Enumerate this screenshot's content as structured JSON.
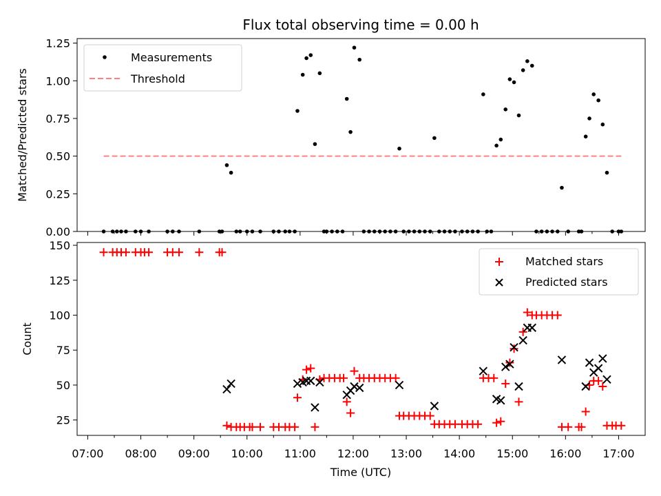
{
  "chart_data": [
    {
      "type": "scatter",
      "title": "Flux total observing time = 0.00 h",
      "xlabel": "",
      "ylabel": "Matched/Predicted stars",
      "xlim": [
        6.8,
        17.5
      ],
      "ylim": [
        0,
        1.28
      ],
      "yticks": [
        0,
        0.25,
        0.5,
        0.75,
        1.0,
        1.25
      ],
      "ytick_labels": [
        "0.00",
        "0.25",
        "0.50",
        "0.75",
        "1.00",
        "1.25"
      ],
      "legend": {
        "position": "top-left",
        "entries": [
          "Measurements",
          "Threshold"
        ]
      },
      "threshold": {
        "name": "Threshold",
        "y": 0.5,
        "x_range": [
          7.3,
          17.05
        ],
        "color": "#ff8080",
        "style": "dashed"
      },
      "series": [
        {
          "name": "Measurements",
          "color": "#000000",
          "marker": "dot",
          "points": [
            [
              7.3,
              0
            ],
            [
              7.47,
              0
            ],
            [
              7.55,
              0
            ],
            [
              7.63,
              0
            ],
            [
              7.72,
              0
            ],
            [
              7.9,
              0
            ],
            [
              8.0,
              0
            ],
            [
              8.15,
              0
            ],
            [
              8.5,
              0
            ],
            [
              8.6,
              0
            ],
            [
              8.72,
              0
            ],
            [
              9.1,
              0
            ],
            [
              9.48,
              0
            ],
            [
              9.53,
              0
            ],
            [
              9.62,
              0.44
            ],
            [
              9.7,
              0.39
            ],
            [
              9.8,
              0
            ],
            [
              9.87,
              0
            ],
            [
              10.0,
              0
            ],
            [
              10.1,
              0
            ],
            [
              10.25,
              0
            ],
            [
              10.5,
              0
            ],
            [
              10.6,
              0
            ],
            [
              10.72,
              0
            ],
            [
              10.8,
              0
            ],
            [
              10.9,
              0
            ],
            [
              10.95,
              0.8
            ],
            [
              11.05,
              1.04
            ],
            [
              11.12,
              1.15
            ],
            [
              11.2,
              1.17
            ],
            [
              11.28,
              0.58
            ],
            [
              11.37,
              1.05
            ],
            [
              11.45,
              0
            ],
            [
              11.5,
              0
            ],
            [
              11.6,
              0
            ],
            [
              11.7,
              0
            ],
            [
              11.8,
              0
            ],
            [
              11.88,
              0.88
            ],
            [
              11.95,
              0.66
            ],
            [
              12.02,
              1.22
            ],
            [
              12.12,
              1.14
            ],
            [
              12.2,
              0
            ],
            [
              12.3,
              0
            ],
            [
              12.4,
              0
            ],
            [
              12.5,
              0
            ],
            [
              12.6,
              0
            ],
            [
              12.7,
              0
            ],
            [
              12.8,
              0
            ],
            [
              12.87,
              0.55
            ],
            [
              12.95,
              0
            ],
            [
              13.05,
              0
            ],
            [
              13.15,
              0
            ],
            [
              13.25,
              0
            ],
            [
              13.35,
              0
            ],
            [
              13.45,
              0
            ],
            [
              13.53,
              0.62
            ],
            [
              13.62,
              0
            ],
            [
              13.72,
              0
            ],
            [
              13.82,
              0
            ],
            [
              13.92,
              0
            ],
            [
              14.05,
              0
            ],
            [
              14.15,
              0
            ],
            [
              14.25,
              0
            ],
            [
              14.35,
              0
            ],
            [
              14.45,
              0.91
            ],
            [
              14.52,
              0
            ],
            [
              14.6,
              0
            ],
            [
              14.7,
              0.57
            ],
            [
              14.78,
              0.61
            ],
            [
              14.87,
              0.81
            ],
            [
              14.95,
              1.01
            ],
            [
              15.03,
              0.99
            ],
            [
              15.12,
              0.77
            ],
            [
              15.2,
              1.07
            ],
            [
              15.28,
              1.13
            ],
            [
              15.37,
              1.1
            ],
            [
              15.45,
              0
            ],
            [
              15.55,
              0
            ],
            [
              15.65,
              0
            ],
            [
              15.75,
              0
            ],
            [
              15.85,
              0
            ],
            [
              15.93,
              0.29
            ],
            [
              16.05,
              0
            ],
            [
              16.25,
              0
            ],
            [
              16.3,
              0
            ],
            [
              16.38,
              0.63
            ],
            [
              16.45,
              0.75
            ],
            [
              16.53,
              0.91
            ],
            [
              16.62,
              0.87
            ],
            [
              16.7,
              0.71
            ],
            [
              16.78,
              0.39
            ],
            [
              16.88,
              0
            ],
            [
              17.0,
              0
            ],
            [
              17.05,
              0
            ]
          ]
        }
      ]
    },
    {
      "type": "scatter",
      "xlabel": "Time (UTC)",
      "ylabel": "Count",
      "xlim": [
        6.8,
        17.5
      ],
      "ylim": [
        14,
        152
      ],
      "xticks": [
        7,
        8,
        9,
        10,
        11,
        12,
        13,
        14,
        15,
        16,
        17
      ],
      "xtick_labels": [
        "07:00",
        "08:00",
        "09:00",
        "10:00",
        "11:00",
        "12:00",
        "13:00",
        "14:00",
        "15:00",
        "16:00",
        "17:00"
      ],
      "yticks": [
        25,
        50,
        75,
        100,
        125,
        150
      ],
      "ytick_labels": [
        "25",
        "50",
        "75",
        "100",
        "125",
        "150"
      ],
      "legend": {
        "position": "top-right",
        "entries": [
          "Matched stars",
          "Predicted stars"
        ]
      },
      "series": [
        {
          "name": "Matched stars",
          "color": "#ff0000",
          "marker": "plus",
          "points": [
            [
              7.3,
              145
            ],
            [
              7.47,
              145
            ],
            [
              7.55,
              145
            ],
            [
              7.63,
              145
            ],
            [
              7.72,
              145
            ],
            [
              7.9,
              145
            ],
            [
              8.0,
              145
            ],
            [
              8.07,
              145
            ],
            [
              8.15,
              145
            ],
            [
              8.5,
              145
            ],
            [
              8.6,
              145
            ],
            [
              8.72,
              145
            ],
            [
              9.1,
              145
            ],
            [
              9.48,
              145
            ],
            [
              9.53,
              145
            ],
            [
              9.62,
              21
            ],
            [
              9.7,
              20
            ],
            [
              9.8,
              20
            ],
            [
              9.87,
              20
            ],
            [
              9.95,
              20
            ],
            [
              10.05,
              20
            ],
            [
              10.1,
              20
            ],
            [
              10.25,
              20
            ],
            [
              10.5,
              20
            ],
            [
              10.6,
              20
            ],
            [
              10.72,
              20
            ],
            [
              10.8,
              20
            ],
            [
              10.9,
              20
            ],
            [
              10.95,
              41
            ],
            [
              11.05,
              54
            ],
            [
              11.12,
              61
            ],
            [
              11.2,
              62
            ],
            [
              11.28,
              20
            ],
            [
              11.37,
              54
            ],
            [
              11.45,
              55
            ],
            [
              11.55,
              55
            ],
            [
              11.65,
              55
            ],
            [
              11.75,
              55
            ],
            [
              11.82,
              55
            ],
            [
              11.88,
              38
            ],
            [
              11.95,
              30
            ],
            [
              12.02,
              60
            ],
            [
              12.12,
              55
            ],
            [
              12.2,
              55
            ],
            [
              12.3,
              55
            ],
            [
              12.4,
              55
            ],
            [
              12.5,
              55
            ],
            [
              12.6,
              55
            ],
            [
              12.7,
              55
            ],
            [
              12.8,
              55
            ],
            [
              12.87,
              28
            ],
            [
              12.95,
              28
            ],
            [
              13.05,
              28
            ],
            [
              13.15,
              28
            ],
            [
              13.25,
              28
            ],
            [
              13.35,
              28
            ],
            [
              13.45,
              28
            ],
            [
              13.53,
              22
            ],
            [
              13.62,
              22
            ],
            [
              13.72,
              22
            ],
            [
              13.82,
              22
            ],
            [
              13.92,
              22
            ],
            [
              14.05,
              22
            ],
            [
              14.15,
              22
            ],
            [
              14.25,
              22
            ],
            [
              14.35,
              22
            ],
            [
              14.45,
              55
            ],
            [
              14.55,
              55
            ],
            [
              14.65,
              55
            ],
            [
              14.7,
              23
            ],
            [
              14.78,
              24
            ],
            [
              14.87,
              51
            ],
            [
              14.95,
              66
            ],
            [
              15.03,
              76
            ],
            [
              15.12,
              38
            ],
            [
              15.2,
              88
            ],
            [
              15.28,
              102
            ],
            [
              15.37,
              100
            ],
            [
              15.45,
              100
            ],
            [
              15.55,
              100
            ],
            [
              15.65,
              100
            ],
            [
              15.75,
              100
            ],
            [
              15.85,
              100
            ],
            [
              15.93,
              20
            ],
            [
              16.05,
              20
            ],
            [
              16.25,
              20
            ],
            [
              16.3,
              20
            ],
            [
              16.38,
              31
            ],
            [
              16.45,
              50
            ],
            [
              16.53,
              53
            ],
            [
              16.62,
              53
            ],
            [
              16.7,
              49
            ],
            [
              16.78,
              21
            ],
            [
              16.88,
              21
            ],
            [
              16.95,
              21
            ],
            [
              17.05,
              21
            ]
          ]
        },
        {
          "name": "Predicted stars",
          "color": "#000000",
          "marker": "x",
          "points": [
            [
              9.62,
              47
            ],
            [
              9.7,
              51
            ],
            [
              10.95,
              51
            ],
            [
              11.05,
              52
            ],
            [
              11.12,
              53
            ],
            [
              11.2,
              53
            ],
            [
              11.28,
              34
            ],
            [
              11.37,
              52
            ],
            [
              11.88,
              43
            ],
            [
              11.95,
              46
            ],
            [
              12.02,
              49
            ],
            [
              12.12,
              48
            ],
            [
              12.87,
              50
            ],
            [
              13.53,
              35
            ],
            [
              14.45,
              60
            ],
            [
              14.7,
              40
            ],
            [
              14.78,
              39
            ],
            [
              14.87,
              63
            ],
            [
              14.95,
              65
            ],
            [
              15.03,
              77
            ],
            [
              15.12,
              49
            ],
            [
              15.2,
              82
            ],
            [
              15.28,
              91
            ],
            [
              15.37,
              91
            ],
            [
              15.93,
              68
            ],
            [
              16.38,
              49
            ],
            [
              16.45,
              66
            ],
            [
              16.53,
              59
            ],
            [
              16.62,
              62
            ],
            [
              16.7,
              69
            ],
            [
              16.78,
              54
            ]
          ]
        }
      ]
    }
  ]
}
